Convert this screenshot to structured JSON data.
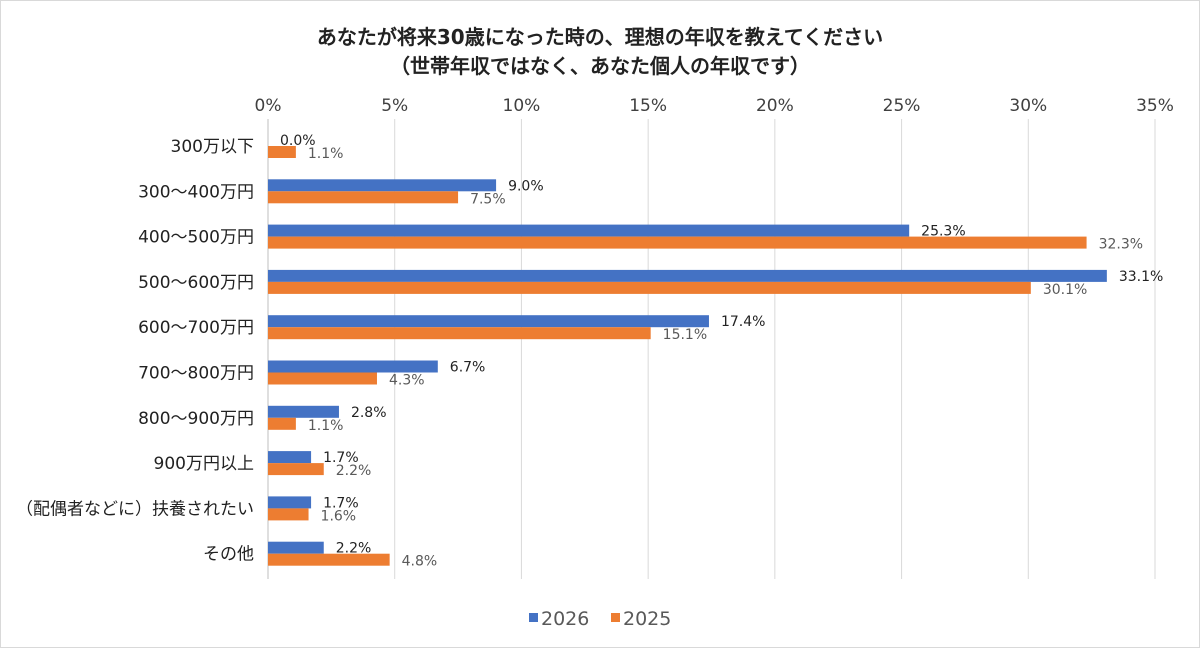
{
  "chart_data": {
    "type": "bar",
    "orientation": "horizontal",
    "title": [
      "あなたが将来30歳になった時の、理想の年収を教えてください",
      "（世帯年収ではなく、あなた個人の年収です）"
    ],
    "categories": [
      "300万以下",
      "300～400万円",
      "400～500万円",
      "500～600万円",
      "600～700万円",
      "700～800万円",
      "800～900万円",
      "900万円以上",
      "（配偶者などに）扶養されたい",
      "その他"
    ],
    "series": [
      {
        "name": "2026",
        "color": "#4472C4",
        "values": [
          0.0,
          9.0,
          25.3,
          33.1,
          17.4,
          6.7,
          2.8,
          1.7,
          1.7,
          2.2
        ]
      },
      {
        "name": "2025",
        "color": "#ED7D31",
        "values": [
          1.1,
          7.5,
          32.3,
          30.1,
          15.1,
          4.3,
          1.1,
          2.2,
          1.6,
          4.8
        ]
      }
    ],
    "xlim": [
      0,
      35
    ],
    "xticks": [
      "0%",
      "5%",
      "10%",
      "15%",
      "20%",
      "25%",
      "30%",
      "35%"
    ],
    "grid": true,
    "legend": "bottom",
    "value_suffix": "%"
  }
}
